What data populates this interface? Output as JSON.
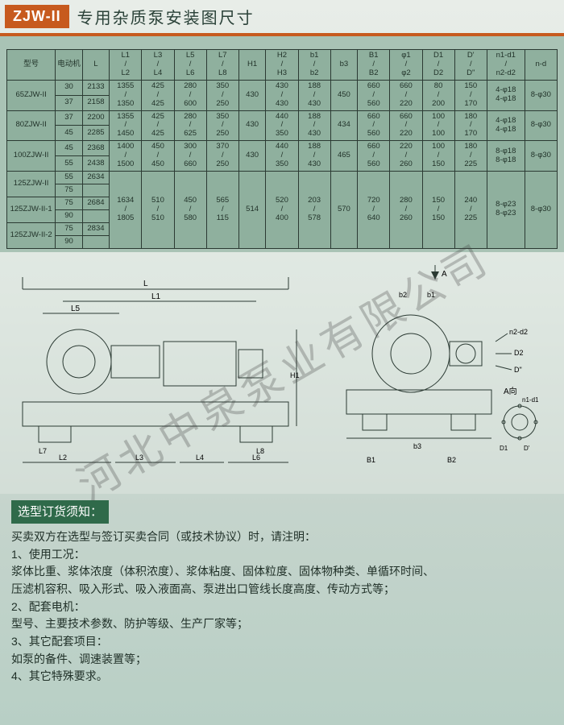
{
  "header": {
    "badge": "ZJW-II",
    "title": "专用杂质泵安装图尺寸"
  },
  "watermark": "河北中泉泵业有限公司",
  "table": {
    "columns": [
      "型号",
      "电动机",
      "L",
      "L1\n/\nL2",
      "L3\n/\nL4",
      "L5\n/\nL6",
      "L7\n/\nL8",
      "H1",
      "H2\n/\nH3",
      "b1\n/\nb2",
      "b3",
      "B1\n/\nB2",
      "φ1\n/\nφ2",
      "D1\n/\nD2",
      "D'\n/\nD\"",
      "n1-d1\n/\nn2-d2",
      "n-d"
    ],
    "col_widths_pct": [
      9,
      5,
      5,
      6,
      6,
      6,
      6,
      5,
      6,
      6,
      5,
      6,
      6,
      6,
      6,
      7,
      6
    ],
    "header_bg": "#8fb09e",
    "cell_bg": "#8fb09e",
    "border_color": "#2b3a33",
    "rows": [
      {
        "model": "65ZJW-II",
        "sub": [
          [
            "30",
            "2133"
          ],
          [
            "37",
            "2158"
          ]
        ],
        "vals": [
          "1355\n/\n1350",
          "425\n/\n425",
          "280\n/\n600",
          "350\n/\n250",
          "430",
          "430\n/\n430",
          "188\n/\n430",
          "450",
          "660\n/\n560",
          "660\n/\n220",
          "80\n/\n200",
          "150\n/\n170",
          "4-φ18\n4-φ18",
          "8-φ30"
        ]
      },
      {
        "model": "80ZJW-II",
        "sub": [
          [
            "37",
            "2200"
          ],
          [
            "45",
            "2285"
          ]
        ],
        "vals": [
          "1355\n/\n1450",
          "425\n/\n425",
          "280\n/\n625",
          "350\n/\n250",
          "430",
          "440\n/\n350",
          "188\n/\n430",
          "434",
          "660\n/\n560",
          "660\n/\n220",
          "100\n/\n100",
          "180\n/\n170",
          "4-φ18\n4-φ18",
          "8-φ30"
        ]
      },
      {
        "model": "100ZJW-II",
        "sub": [
          [
            "45",
            "2368"
          ],
          [
            "55",
            "2438"
          ]
        ],
        "vals": [
          "1400\n/\n1500",
          "450\n/\n450",
          "300\n/\n660",
          "370\n/\n250",
          "430",
          "440\n/\n350",
          "188\n/\n430",
          "465",
          "660\n/\n560",
          "220\n/\n260",
          "100\n/\n150",
          "180\n/\n225",
          "8-φ18\n8-φ18",
          "8-φ30"
        ]
      },
      {
        "model_group": [
          {
            "m": "125ZJW-II",
            "sub": [
              [
                "55",
                "2634"
              ],
              [
                "75",
                ""
              ]
            ]
          },
          {
            "m": "125ZJW-II-1",
            "sub": [
              [
                "75",
                "2684"
              ],
              [
                "90",
                ""
              ]
            ]
          },
          {
            "m": "125ZJW-II-2",
            "sub": [
              [
                "75",
                "2834"
              ],
              [
                "90",
                ""
              ]
            ]
          }
        ],
        "vals": [
          "1634\n/\n1805",
          "510\n/\n510",
          "450\n/\n580",
          "565\n/\n115",
          "514",
          "520\n/\n400",
          "203\n/\n578",
          "570",
          "720\n/\n640",
          "280\n/\n260",
          "150\n/\n150",
          "240\n/\n225",
          "8-φ23\n8-φ23",
          "8-φ30"
        ]
      }
    ]
  },
  "diagram": {
    "labels_left": [
      "L",
      "L1",
      "L5",
      "L2",
      "L3",
      "L4",
      "L6",
      "L7",
      "L8",
      "H1"
    ],
    "labels_right": [
      "A",
      "b2",
      "b1",
      "b3",
      "n2-d2",
      "D2",
      "D\"",
      "A向",
      "n1-d1",
      "D1",
      "D'",
      "B1",
      "B2"
    ]
  },
  "notes": {
    "title": "选型订货须知：",
    "lead": "买卖双方在选型与签订买卖合同（或技术协议）时，请注明：",
    "items": [
      "1、使用工况：",
      "浆体比重、浆体浓度（体积浓度）、浆体粘度、固体粒度、固体物种类、单循环时间、",
      "压滤机容积、吸入形式、吸入液面高、泵进出口管线长度高度、传动方式等；",
      "2、配套电机：",
      "型号、主要技术参数、防护等级、生产厂家等；",
      "3、其它配套项目：",
      "如泵的备件、调速装置等；",
      "4、其它特殊要求。"
    ]
  }
}
